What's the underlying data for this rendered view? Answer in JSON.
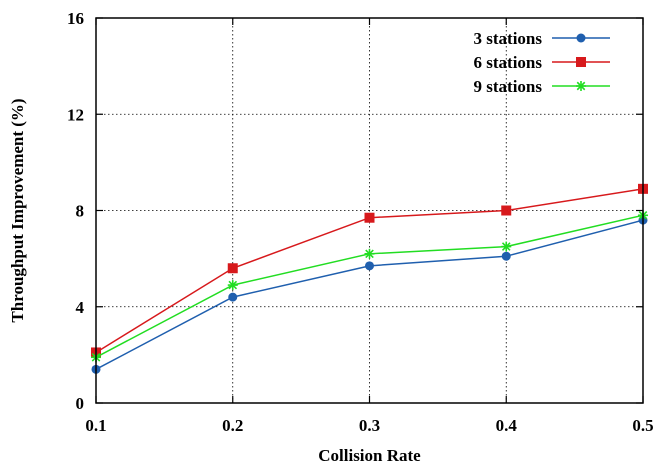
{
  "chart_data": {
    "type": "line",
    "title": "",
    "xlabel": "Collision Rate",
    "ylabel": "Throughput Improvement (%)",
    "x": [
      0.1,
      0.2,
      0.3,
      0.4,
      0.5
    ],
    "x_tick_labels": [
      "0.1",
      "0.2",
      "0.3",
      "0.4",
      "0.5"
    ],
    "y_tick_values": [
      0,
      4,
      8,
      12,
      16
    ],
    "y_tick_labels": [
      "0",
      "4",
      "8",
      "12",
      "16"
    ],
    "xlim": [
      0.1,
      0.5
    ],
    "ylim": [
      0,
      16
    ],
    "grid": true,
    "legend_position": "top-right",
    "series": [
      {
        "name": "3 stations",
        "color": "#1f5fae",
        "marker": "circle",
        "values": [
          1.4,
          4.4,
          5.7,
          6.1,
          7.6
        ]
      },
      {
        "name": "6 stations",
        "color": "#d7191c",
        "marker": "square",
        "values": [
          2.1,
          5.6,
          7.7,
          8.0,
          8.9
        ]
      },
      {
        "name": "9 stations",
        "color": "#22dd22",
        "marker": "asterisk",
        "values": [
          1.9,
          4.9,
          6.2,
          6.5,
          7.8
        ]
      }
    ]
  }
}
